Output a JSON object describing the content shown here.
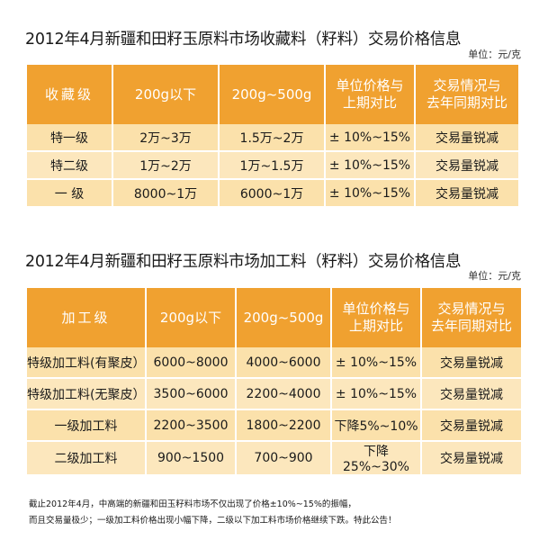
{
  "section1": {
    "title": "2012年4月新疆和田籽玉原料市场收藏料（籽料）交易价格信息",
    "unit": "单位：元/克",
    "headers": [
      "收藏级",
      "200g以下",
      "200g~500g",
      "单位价格与\n上期对比",
      "交易情况与\n去年同期对比"
    ],
    "rows": [
      [
        "特一级",
        "2万~3万",
        "1.5万~2万",
        "± 10%~15%",
        "交易量锐减"
      ],
      [
        "特二级",
        "1万~2万",
        "1万~1.5万",
        "± 10%~15%",
        "交易量锐减"
      ],
      [
        "一 级",
        "8000~1万",
        "6000~1万",
        "± 10%~15%",
        "交易量锐减"
      ]
    ]
  },
  "section2": {
    "title": "2012年4月新疆和田籽玉原料市场加工料（籽料）交易价格信息",
    "unit": "单位：元/克",
    "headers": [
      "加工级",
      "200g以下",
      "200g~500g",
      "单位价格与\n上期对比",
      "交易情况与\n去年同期对比"
    ],
    "rows": [
      [
        "特级加工料(有聚皮）",
        "6000~8000",
        "4000~6000",
        "± 10%~15%",
        "交易量锐减"
      ],
      [
        "特级加工料(无聚皮）",
        "3500~6000",
        "2200~4000",
        "± 10%~15%",
        "交易量锐减"
      ],
      [
        "一级加工料",
        "2200~3500",
        "1800~2200",
        "下降5%~10%",
        "交易量锐减"
      ],
      [
        "二级加工料",
        "900~1500",
        "700~900",
        "下降25%~30%",
        "交易量锐减"
      ]
    ]
  },
  "footer": {
    "line1": "截止2012年4月，中高端的新疆和田玉籽料市场不仅出现了价格±10%~15%的振幅，",
    "line2": "而且交易量极少；一级加工料价格出现小幅下降，二级以下加工料市场价格继续下跌。特此公告！"
  }
}
